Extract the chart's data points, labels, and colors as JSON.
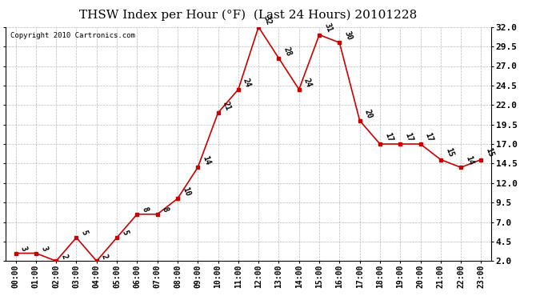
{
  "title": "THSW Index per Hour (°F)  (Last 24 Hours) 20101228",
  "copyright": "Copyright 2010 Cartronics.com",
  "hours": [
    "00:00",
    "01:00",
    "02:00",
    "03:00",
    "04:00",
    "05:00",
    "06:00",
    "07:00",
    "08:00",
    "09:00",
    "10:00",
    "11:00",
    "12:00",
    "13:00",
    "14:00",
    "15:00",
    "16:00",
    "17:00",
    "18:00",
    "19:00",
    "20:00",
    "21:00",
    "22:00",
    "23:00"
  ],
  "values": [
    3,
    3,
    2,
    5,
    2,
    5,
    8,
    8,
    10,
    14,
    21,
    24,
    32,
    28,
    24,
    31,
    30,
    20,
    17,
    17,
    17,
    15,
    14,
    15
  ],
  "line_color": "#cc0000",
  "marker_color": "#cc0000",
  "bg_color": "#ffffff",
  "grid_color": "#bbbbbb",
  "ylim_min": 2.0,
  "ylim_max": 32.0,
  "yticks": [
    2.0,
    4.5,
    7.0,
    9.5,
    12.0,
    14.5,
    17.0,
    19.5,
    22.0,
    24.5,
    27.0,
    29.5,
    32.0
  ],
  "title_fontsize": 11,
  "tick_fontsize": 7,
  "annot_fontsize": 7,
  "copyright_fontsize": 6.5
}
